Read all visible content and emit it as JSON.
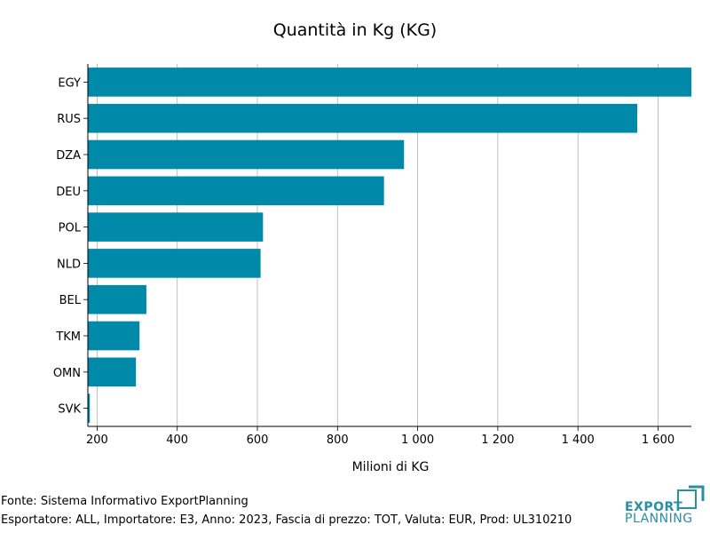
{
  "chart_data": {
    "type": "bar",
    "orientation": "horizontal",
    "title": "Quantità in Kg (KG)",
    "xlabel": "Milioni di KG",
    "ylabel": "",
    "categories": [
      "EGY",
      "RUS",
      "DZA",
      "DEU",
      "POL",
      "NLD",
      "BEL",
      "TKM",
      "OMN",
      "SVK"
    ],
    "values": [
      1683,
      1548,
      966,
      916,
      614,
      608,
      323,
      306,
      297,
      182
    ],
    "xlim": [
      177,
      1683
    ],
    "xticks": [
      200,
      400,
      600,
      800,
      1000,
      1200,
      1400,
      1600
    ],
    "xtick_labels": [
      "200",
      "400",
      "600",
      "800",
      "1 000",
      "1 200",
      "1 400",
      "1 600"
    ],
    "grid": "vertical",
    "bar_color": "#0089a9"
  },
  "footer": {
    "source": "Fonte: Sistema Informativo ExportPlanning",
    "details": "Esportatore: ALL, Importatore: E3, Anno: 2023, Fascia di prezzo: TOT, Valuta: EUR, Prod: UL310210"
  },
  "logo": {
    "line1": "EXPORT",
    "line2": "PLANNING",
    "color": "#2a8fa6"
  }
}
